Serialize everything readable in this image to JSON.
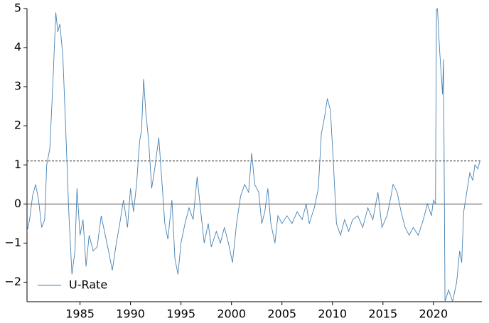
{
  "chart_data": {
    "type": "line",
    "x": [
      1979.75,
      1980.0,
      1980.3,
      1980.6,
      1980.9,
      1981.2,
      1981.5,
      1981.7,
      1982.0,
      1982.3,
      1982.6,
      1982.8,
      1983.0,
      1983.3,
      1983.6,
      1983.9,
      1984.2,
      1984.5,
      1984.7,
      1985.0,
      1985.3,
      1985.6,
      1985.9,
      1986.3,
      1986.7,
      1987.1,
      1987.5,
      1987.9,
      1988.2,
      1988.6,
      1989.0,
      1989.3,
      1989.7,
      1990.0,
      1990.3,
      1990.6,
      1990.9,
      1991.1,
      1991.3,
      1991.5,
      1991.8,
      1992.1,
      1992.4,
      1992.8,
      1993.1,
      1993.4,
      1993.7,
      1994.1,
      1994.4,
      1994.7,
      1995.0,
      1995.4,
      1995.8,
      1996.2,
      1996.6,
      1997.0,
      1997.3,
      1997.7,
      1998.0,
      1998.5,
      1998.9,
      1999.3,
      1999.7,
      2000.1,
      2000.5,
      2000.9,
      2001.3,
      2001.7,
      2002.0,
      2002.3,
      2002.7,
      2003.0,
      2003.3,
      2003.6,
      2003.9,
      2004.3,
      2004.6,
      2005.0,
      2005.5,
      2006.0,
      2006.5,
      2007.0,
      2007.4,
      2007.7,
      2008.2,
      2008.6,
      2008.9,
      2009.2,
      2009.5,
      2009.8,
      2010.1,
      2010.4,
      2010.8,
      2011.2,
      2011.6,
      2012.0,
      2012.5,
      2013.0,
      2013.5,
      2014.0,
      2014.5,
      2014.9,
      2015.4,
      2015.8,
      2016.0,
      2016.4,
      2016.8,
      2017.2,
      2017.6,
      2018.0,
      2018.5,
      2019.0,
      2019.4,
      2019.8,
      2020.0,
      2020.2,
      2020.3,
      2020.4,
      2020.6,
      2020.9,
      2021.0,
      2021.15,
      2021.5,
      2021.9,
      2022.3,
      2022.6,
      2022.8,
      2023.0,
      2023.3,
      2023.6,
      2023.9,
      2024.1,
      2024.4,
      2024.6
    ],
    "series": [
      {
        "name": "U-Rate",
        "color": "#4682b4",
        "values": [
          -0.7,
          -0.4,
          0.2,
          0.5,
          0.1,
          -0.6,
          -0.4,
          1.0,
          1.4,
          3.0,
          4.9,
          4.4,
          4.6,
          3.8,
          1.8,
          -0.3,
          -1.8,
          -1.2,
          0.4,
          -0.8,
          -0.4,
          -1.6,
          -0.8,
          -1.2,
          -1.1,
          -0.3,
          -0.8,
          -1.3,
          -1.7,
          -1.0,
          -0.4,
          0.1,
          -0.6,
          0.4,
          -0.2,
          0.5,
          1.6,
          1.9,
          3.2,
          2.4,
          1.6,
          0.4,
          0.9,
          1.7,
          0.6,
          -0.5,
          -0.9,
          0.1,
          -1.4,
          -1.8,
          -1.0,
          -0.5,
          -0.1,
          -0.4,
          0.7,
          -0.3,
          -1.0,
          -0.5,
          -1.1,
          -0.7,
          -1.0,
          -0.6,
          -1.0,
          -1.5,
          -0.5,
          0.2,
          0.5,
          0.3,
          1.3,
          0.5,
          0.3,
          -0.5,
          -0.2,
          0.4,
          -0.5,
          -1.0,
          -0.3,
          -0.5,
          -0.3,
          -0.5,
          -0.2,
          -0.4,
          0.0,
          -0.5,
          -0.1,
          0.4,
          1.8,
          2.2,
          2.7,
          2.4,
          1.0,
          -0.5,
          -0.8,
          -0.4,
          -0.7,
          -0.4,
          -0.3,
          -0.6,
          -0.1,
          -0.4,
          0.3,
          -0.6,
          -0.3,
          0.2,
          0.5,
          0.3,
          -0.2,
          -0.6,
          -0.8,
          -0.6,
          -0.8,
          -0.4,
          0.0,
          -0.3,
          0.1,
          0.0,
          5.0,
          5.0,
          4.0,
          2.8,
          3.7,
          -2.5,
          -2.2,
          -2.5,
          -2.0,
          -1.2,
          -1.5,
          -0.2,
          0.3,
          0.8,
          0.6,
          1.0,
          0.9,
          1.1
        ]
      }
    ],
    "xlim": [
      1979.75,
      2024.8
    ],
    "ylim": [
      -2.5,
      5
    ],
    "xticks": [
      1985,
      1990,
      1995,
      2000,
      2005,
      2010,
      2015,
      2020
    ],
    "yticks": [
      {
        "value": -2,
        "label": "−2"
      },
      {
        "value": -1,
        "label": "−1"
      },
      0,
      1,
      2,
      3,
      4,
      5
    ],
    "hlines": [
      {
        "value": 1.1,
        "style": "dashed"
      },
      {
        "value": 0,
        "style": "solid"
      }
    ],
    "legend": "lower left"
  }
}
